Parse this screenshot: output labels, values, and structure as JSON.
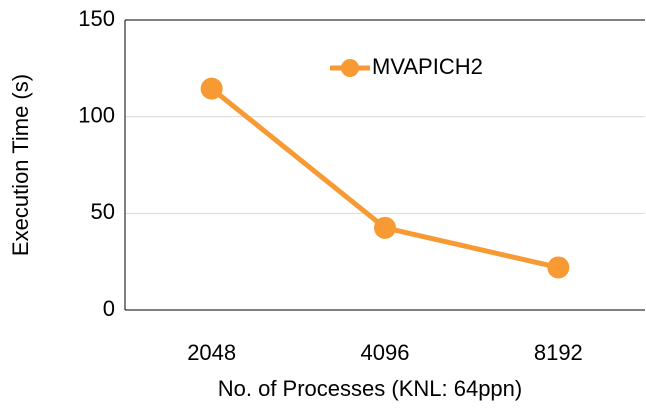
{
  "chart_data": {
    "type": "line",
    "categories": [
      "2048",
      "4096",
      "8192"
    ],
    "series": [
      {
        "name": "MVAPICH2",
        "color": "#f79a33",
        "values": [
          114.5,
          42.5,
          22
        ]
      }
    ],
    "xlabel": "No. of Processes (KNL: 64ppn)",
    "ylabel": "Execution Time (s)",
    "ylim": [
      0,
      150
    ],
    "yticks": [
      0,
      50,
      100,
      150
    ],
    "grid": true,
    "legend": "upper right"
  }
}
